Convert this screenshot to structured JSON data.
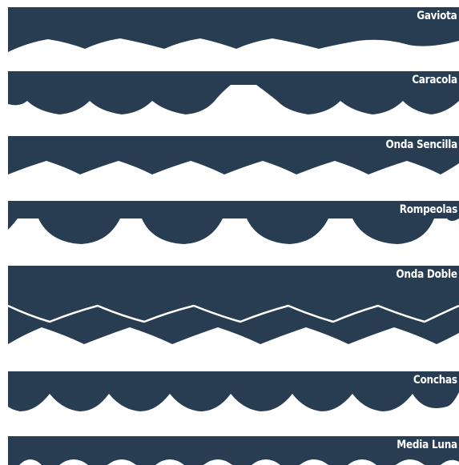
{
  "colors": {
    "band": "#283d51",
    "background": "#ffffff",
    "label": "#ffffff",
    "accent_line": "#ffffff"
  },
  "styles": [
    {
      "id": "gaviota",
      "label": "Gaviota"
    },
    {
      "id": "caracola",
      "label": "Caracola"
    },
    {
      "id": "onda-sencilla",
      "label": "Onda Sencilla"
    },
    {
      "id": "rompeolas",
      "label": "Rompeolas"
    },
    {
      "id": "onda-doble",
      "label": "Onda Doble"
    },
    {
      "id": "conchas",
      "label": "Conchas"
    },
    {
      "id": "media-luna",
      "label": "Media Luna"
    }
  ]
}
